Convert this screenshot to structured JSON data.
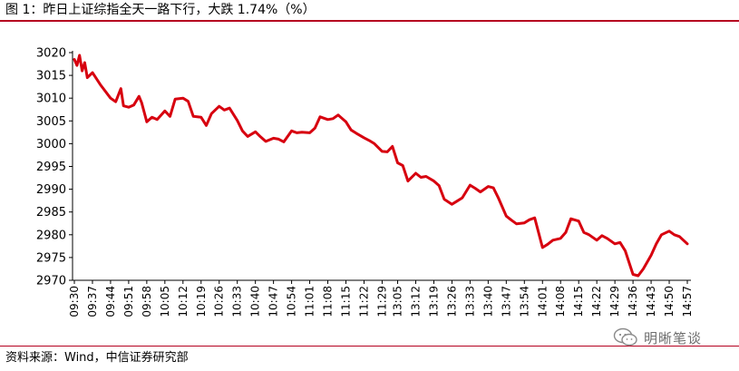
{
  "header": {
    "title": "图 1：昨日上证综指全天一路下行，大跌 1.74%（%）"
  },
  "footer": {
    "source": "资料来源：Wind，中信证券研究部"
  },
  "watermark": {
    "text": "明晰笔谈",
    "icon": "wechat-icon"
  },
  "colors": {
    "line": "#d7000f",
    "rule": "#b5001f",
    "axis": "#000000"
  },
  "chart_data": {
    "type": "line",
    "title": "",
    "xlabel": "",
    "ylabel": "",
    "ylim": [
      2970,
      3020
    ],
    "yticks": [
      2970,
      2975,
      2980,
      2985,
      2990,
      2995,
      3000,
      3005,
      3010,
      3015,
      3020
    ],
    "xticks": [
      "09:30",
      "09:37",
      "09:44",
      "09:51",
      "09:58",
      "10:05",
      "10:12",
      "10:19",
      "10:26",
      "10:33",
      "10:40",
      "10:47",
      "10:54",
      "11:01",
      "11:08",
      "11:15",
      "11:22",
      "11:29",
      "13:05",
      "13:12",
      "13:19",
      "13:26",
      "13:33",
      "13:40",
      "13:47",
      "13:54",
      "14:01",
      "14:08",
      "14:15",
      "14:22",
      "14:29",
      "14:36",
      "14:43",
      "14:50",
      "14:57"
    ],
    "grid": false,
    "legend": "none",
    "series": [
      {
        "name": "",
        "x": [
          "09:30",
          "09:31",
          "09:32",
          "09:33",
          "09:34",
          "09:35",
          "09:37",
          "09:40",
          "09:44",
          "09:46",
          "09:48",
          "09:49",
          "09:51",
          "09:53",
          "09:55",
          "09:56",
          "09:58",
          "10:00",
          "10:02",
          "10:05",
          "10:07",
          "10:09",
          "10:12",
          "10:14",
          "10:16",
          "10:19",
          "10:21",
          "10:23",
          "10:26",
          "10:28",
          "10:30",
          "10:33",
          "10:35",
          "10:37",
          "10:40",
          "10:42",
          "10:44",
          "10:47",
          "10:49",
          "10:51",
          "10:54",
          "10:56",
          "10:58",
          "11:01",
          "11:03",
          "11:05",
          "11:08",
          "11:10",
          "11:12",
          "11:15",
          "11:17",
          "11:19",
          "11:22",
          "11:24",
          "11:26",
          "11:29",
          "13:01",
          "13:03",
          "13:05",
          "13:07",
          "13:09",
          "13:12",
          "13:14",
          "13:16",
          "13:19",
          "13:21",
          "13:23",
          "13:26",
          "13:28",
          "13:30",
          "13:33",
          "13:35",
          "13:37",
          "13:40",
          "13:42",
          "13:44",
          "13:47",
          "13:49",
          "13:51",
          "13:54",
          "13:56",
          "13:58",
          "14:01",
          "14:03",
          "14:05",
          "14:08",
          "14:10",
          "14:12",
          "14:15",
          "14:17",
          "14:19",
          "14:22",
          "14:24",
          "14:26",
          "14:29",
          "14:31",
          "14:33",
          "14:36",
          "14:38",
          "14:40",
          "14:43",
          "14:45",
          "14:47",
          "14:50",
          "14:52",
          "14:54",
          "14:57"
        ],
        "values": [
          3018.5,
          3017.2,
          3019.4,
          3016.0,
          3017.8,
          3014.5,
          3015.6,
          3013.0,
          3010.0,
          3009.2,
          3012.1,
          3008.3,
          3008.0,
          3008.5,
          3010.4,
          3009.0,
          3004.8,
          3005.8,
          3005.3,
          3007.2,
          3006.0,
          3009.8,
          3010.0,
          3009.3,
          3006.0,
          3005.8,
          3004.0,
          3006.6,
          3008.2,
          3007.4,
          3007.8,
          3005.1,
          3002.8,
          3001.6,
          3002.6,
          3001.5,
          3000.5,
          3001.2,
          3001.0,
          3000.4,
          3002.8,
          3002.4,
          3002.5,
          3002.4,
          3003.4,
          3005.9,
          3005.3,
          3005.5,
          3006.3,
          3004.8,
          3003.0,
          3002.3,
          3001.3,
          3000.7,
          3000.0,
          2998.3,
          2998.2,
          2999.4,
          2995.8,
          2995.2,
          2991.8,
          2993.5,
          2992.6,
          2992.8,
          2991.8,
          2990.8,
          2987.8,
          2986.7,
          2987.4,
          2988.1,
          2990.9,
          2990.2,
          2989.4,
          2990.6,
          2990.3,
          2988.0,
          2984.1,
          2983.2,
          2982.4,
          2982.6,
          2983.3,
          2983.7,
          2977.2,
          2977.9,
          2978.8,
          2979.2,
          2980.5,
          2983.5,
          2983.0,
          2980.5,
          2980.0,
          2978.8,
          2979.8,
          2979.2,
          2978.0,
          2978.3,
          2976.5,
          2971.3,
          2971.0,
          2972.5,
          2975.5,
          2978.0,
          2980.0,
          2980.8,
          2980.0,
          2979.6,
          2978.0
        ]
      }
    ]
  }
}
